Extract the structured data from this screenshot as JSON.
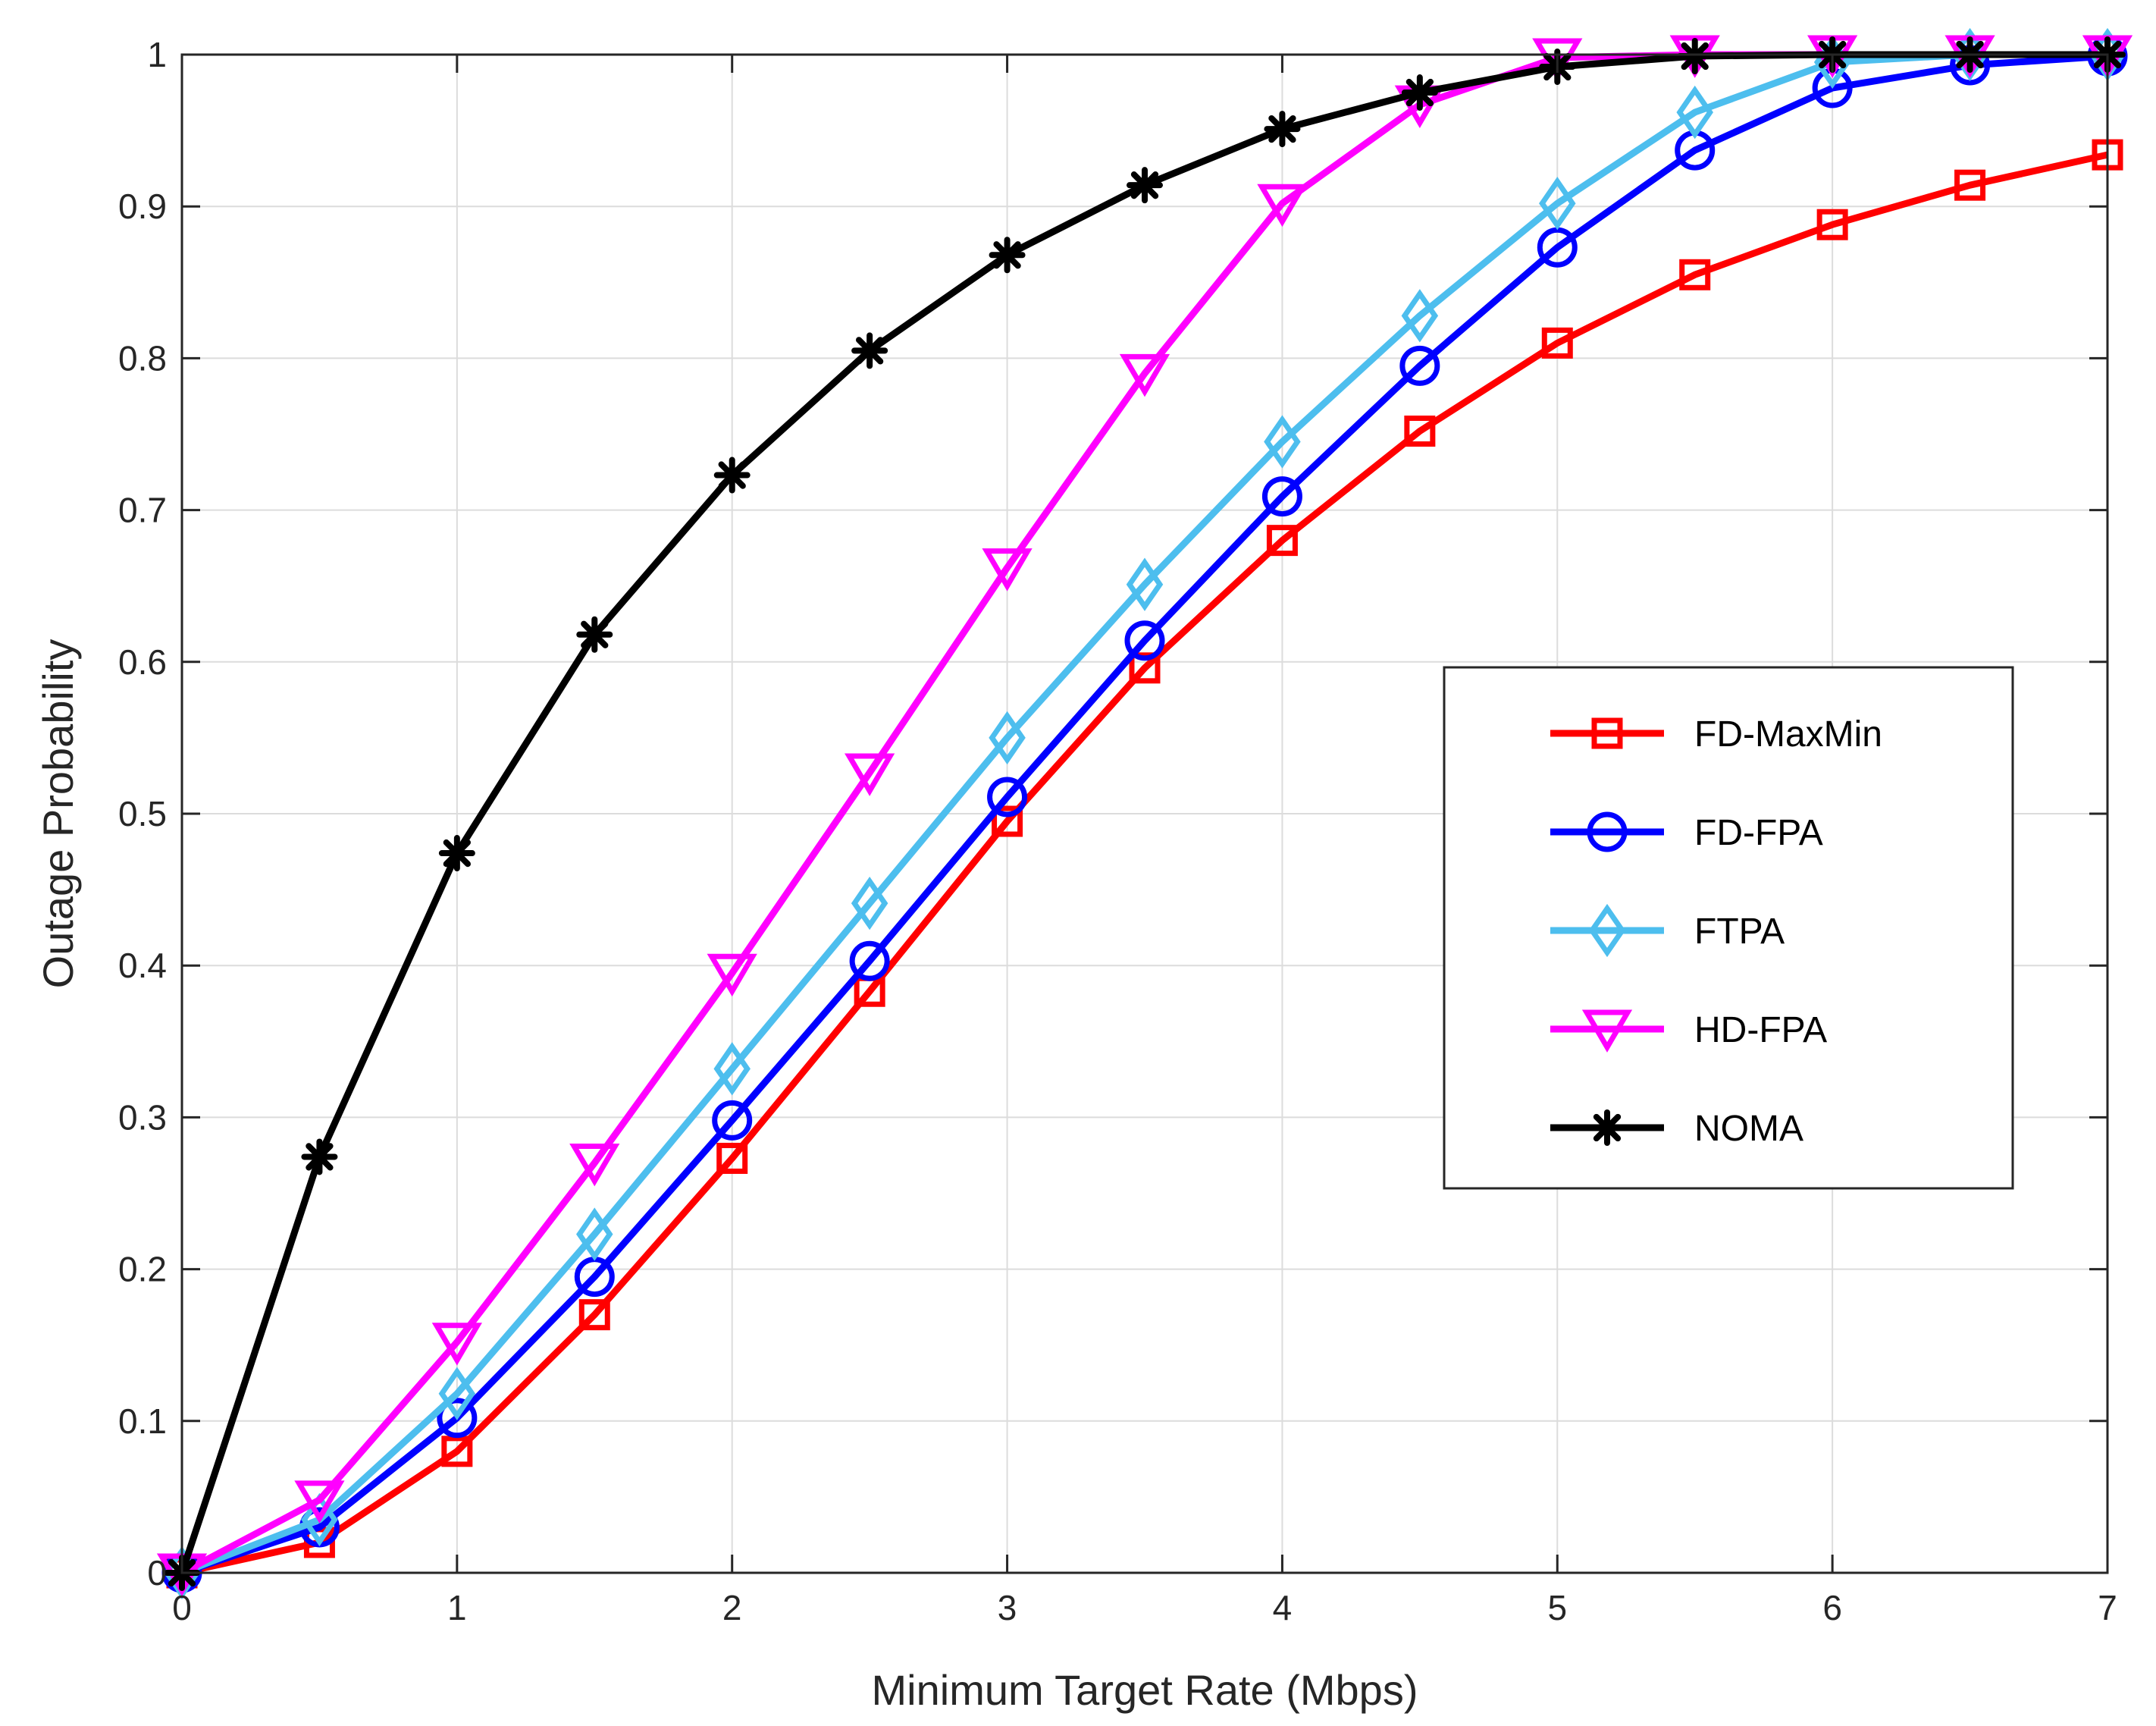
{
  "chart_data": {
    "type": "line",
    "title": "",
    "xlabel": "Minimum Target Rate (Mbps)",
    "ylabel": "Outage Probability",
    "xlim": [
      0,
      7
    ],
    "ylim": [
      0,
      1
    ],
    "grid": true,
    "legend_position": "right",
    "x": [
      0,
      0.5,
      1,
      1.5,
      2,
      2.5,
      3,
      3.5,
      4,
      4.5,
      5,
      5.5,
      6,
      6.5,
      7
    ],
    "x_ticks": [
      0,
      1,
      2,
      3,
      4,
      5,
      6,
      7
    ],
    "x_tick_labels": [
      "0",
      "1",
      "2",
      "3",
      "4",
      "5",
      "6",
      "7"
    ],
    "y_ticks": [
      0,
      0.1,
      0.2,
      0.3,
      0.4,
      0.5,
      0.6,
      0.7,
      0.8,
      0.9,
      1
    ],
    "y_tick_labels": [
      "0",
      "0.1",
      "0.2",
      "0.3",
      "0.4",
      "0.5",
      "0.6",
      "0.7",
      "0.8",
      "0.9",
      "1"
    ],
    "series": [
      {
        "name": "FD-MaxMin",
        "color": "#ff0000",
        "marker": "square",
        "values": [
          0,
          0.02,
          0.08,
          0.17,
          0.273,
          0.383,
          0.495,
          0.596,
          0.68,
          0.752,
          0.81,
          0.855,
          0.888,
          0.914,
          0.934
        ]
      },
      {
        "name": "FD-FPA",
        "color": "#0000ff",
        "marker": "circle",
        "values": [
          0,
          0.03,
          0.102,
          0.195,
          0.298,
          0.403,
          0.511,
          0.614,
          0.709,
          0.795,
          0.873,
          0.937,
          0.978,
          0.993,
          0.999
        ]
      },
      {
        "name": "FTPA",
        "color": "#4dbeee",
        "marker": "diamond",
        "values": [
          0,
          0.035,
          0.118,
          0.223,
          0.332,
          0.441,
          0.55,
          0.651,
          0.745,
          0.828,
          0.902,
          0.962,
          0.995,
          1.0,
          1.0
        ]
      },
      {
        "name": "HD-FPA",
        "color": "#ff00ff",
        "marker": "triangle-down",
        "values": [
          0,
          0.048,
          0.152,
          0.27,
          0.395,
          0.527,
          0.662,
          0.79,
          0.902,
          0.967,
          0.998,
          1.0,
          1.0,
          1.0,
          1.0
        ]
      },
      {
        "name": "NOMA",
        "color": "#000000",
        "marker": "asterisk",
        "values": [
          0,
          0.274,
          0.474,
          0.618,
          0.723,
          0.805,
          0.868,
          0.914,
          0.951,
          0.975,
          0.992,
          0.999,
          1.0,
          1.0,
          1.0
        ]
      }
    ]
  }
}
